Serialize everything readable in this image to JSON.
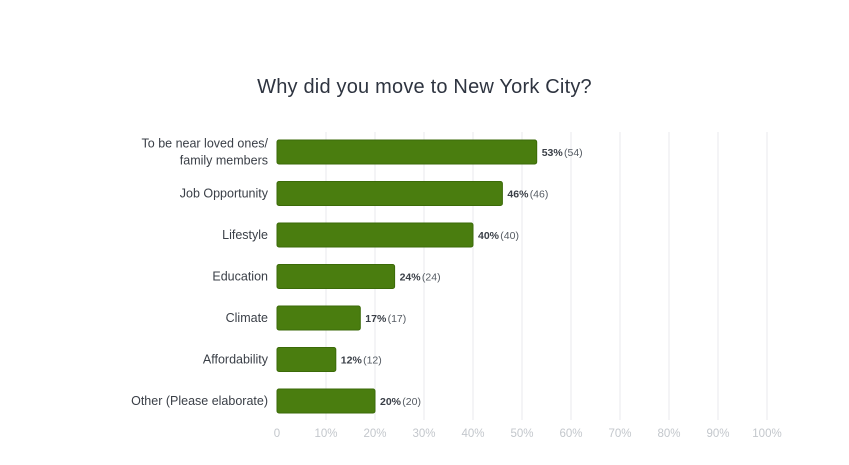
{
  "chart_data": {
    "type": "bar",
    "orientation": "horizontal",
    "title": "Why did you move to New York City?",
    "categories": [
      [
        "To be near loved ones/",
        "family members"
      ],
      [
        "Job Opportunity"
      ],
      [
        "Lifestyle"
      ],
      [
        "Education"
      ],
      [
        "Climate"
      ],
      [
        "Affordability"
      ],
      [
        "Other (Please elaborate)"
      ]
    ],
    "values": [
      53,
      46,
      40,
      24,
      17,
      12,
      20
    ],
    "counts": [
      54,
      46,
      40,
      24,
      17,
      12,
      20
    ],
    "value_labels": [
      "53%",
      "46%",
      "40%",
      "24%",
      "17%",
      "12%",
      "20%"
    ],
    "count_labels": [
      "(54)",
      "(46)",
      "(40)",
      "(24)",
      "(17)",
      "(12)",
      "(20)"
    ],
    "x_ticks": [
      "0",
      "10%",
      "20%",
      "30%",
      "40%",
      "50%",
      "60%",
      "70%",
      "80%",
      "90%",
      "100%"
    ],
    "xlim": [
      0,
      100
    ],
    "grid": true,
    "bar_color": "#4a7d0f",
    "bar_border_color": "#3b6a08"
  }
}
